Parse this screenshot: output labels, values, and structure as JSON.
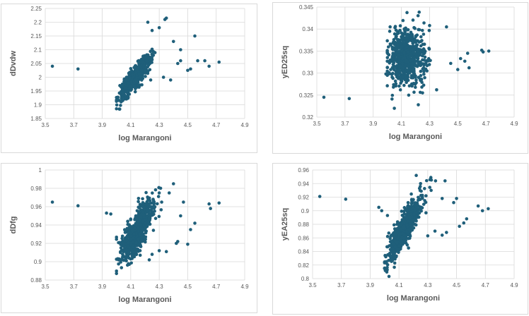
{
  "colors": {
    "marker": "#1f5f7a",
    "grid": "#d9d9d9",
    "text": "#595959",
    "border": "#d9d9d9"
  },
  "chart_data": [
    {
      "type": "scatter",
      "xlabel": "log Marangoni",
      "ylabel": "dDvdw",
      "xlim": [
        3.5,
        4.9
      ],
      "ylim": [
        1.85,
        2.25
      ],
      "xticks": [
        "3.5",
        "3.7",
        "3.9",
        "4.1",
        "4.3",
        "4.5",
        "4.7",
        "4.9"
      ],
      "yticks": [
        "1.85",
        "1.9",
        "1.95",
        "2",
        "2.05",
        "2.1",
        "2.15",
        "2.2",
        "2.25"
      ],
      "grid": true,
      "cluster": {
        "x_mean": 4.13,
        "x_sd": 0.055,
        "slope": 0.6,
        "intercept": -0.478,
        "noise": 0.018,
        "count": 650
      },
      "points": [
        [
          3.55,
          2.04
        ],
        [
          3.73,
          2.03
        ],
        [
          4.62,
          2.06
        ],
        [
          4.65,
          2.04
        ],
        [
          4.72,
          2.055
        ],
        [
          4.57,
          2.06
        ],
        [
          4.52,
          2.03
        ],
        [
          4.55,
          2.15
        ],
        [
          4.5,
          2.025
        ],
        [
          4.43,
          2.05
        ],
        [
          4.34,
          2.21
        ],
        [
          4.35,
          2.215
        ],
        [
          4.4,
          2.13
        ],
        [
          4.45,
          2.1
        ],
        [
          4.3,
          2.18
        ],
        [
          4.25,
          2.17
        ],
        [
          4.24,
          1.99
        ],
        [
          4.33,
          2.0
        ],
        [
          4.38,
          1.99
        ],
        [
          4.22,
          2.2
        ],
        [
          4.45,
          2.06
        ]
      ]
    },
    {
      "type": "scatter",
      "xlabel": "log Marangoni",
      "ylabel": "yED25sq",
      "xlim": [
        3.5,
        4.9
      ],
      "ylim": [
        0.32,
        0.345
      ],
      "xticks": [
        "3.5",
        "3.7",
        "3.9",
        "4.1",
        "4.3",
        "4.5",
        "4.7",
        "4.9"
      ],
      "yticks": [
        "0.32",
        "0.325",
        "0.33",
        "0.335",
        "0.34",
        "0.345"
      ],
      "grid": true,
      "cluster": {
        "x_mean": 4.14,
        "x_sd": 0.065,
        "slope": 0.0,
        "intercept": 0.3335,
        "noise": 0.0032,
        "count": 650
      },
      "points": [
        [
          3.55,
          0.3245
        ],
        [
          3.73,
          0.3242
        ],
        [
          4.67,
          0.3352
        ],
        [
          4.68,
          0.3348
        ],
        [
          4.72,
          0.335
        ],
        [
          4.57,
          0.3345
        ],
        [
          4.52,
          0.3333
        ],
        [
          4.55,
          0.3327
        ],
        [
          4.5,
          0.3308
        ],
        [
          4.58,
          0.3312
        ],
        [
          4.42,
          0.3405
        ],
        [
          4.3,
          0.3408
        ],
        [
          4.35,
          0.3262
        ],
        [
          4.25,
          0.3255
        ],
        [
          4.22,
          0.3228
        ],
        [
          4.02,
          0.3405
        ],
        [
          4.05,
          0.322
        ],
        [
          3.99,
          0.3298
        ],
        [
          4.0,
          0.3295
        ],
        [
          4.45,
          0.3322
        ]
      ]
    },
    {
      "type": "scatter",
      "xlabel": "log Marangoni",
      "ylabel": "dDfg",
      "xlim": [
        3.5,
        4.9
      ],
      "ylim": [
        0.88,
        1.0
      ],
      "xticks": [
        "3.5",
        "3.7",
        "3.9",
        "4.1",
        "4.3",
        "4.5",
        "4.7",
        "4.9"
      ],
      "yticks": [
        "0.88",
        "0.9",
        "0.92",
        "0.94",
        "0.96",
        "0.98",
        "1"
      ],
      "grid": true,
      "cluster": {
        "x_mean": 4.14,
        "x_sd": 0.06,
        "slope": 0.2,
        "intercept": 0.105,
        "noise": 0.011,
        "count": 650
      },
      "points": [
        [
          3.55,
          0.965
        ],
        [
          3.73,
          0.961
        ],
        [
          4.65,
          0.963
        ],
        [
          4.66,
          0.958
        ],
        [
          4.72,
          0.964
        ],
        [
          4.55,
          0.942
        ],
        [
          4.52,
          0.935
        ],
        [
          4.5,
          0.919
        ],
        [
          4.43,
          0.922
        ],
        [
          4.42,
          0.92
        ],
        [
          4.4,
          0.985
        ],
        [
          4.37,
          0.975
        ],
        [
          4.3,
          0.975
        ],
        [
          4.35,
          0.911
        ],
        [
          4.3,
          0.912
        ],
        [
          4.25,
          0.908
        ],
        [
          4.23,
          0.902
        ],
        [
          3.96,
          0.952
        ],
        [
          3.93,
          0.953
        ],
        [
          4.45,
          0.95
        ],
        [
          4.47,
          0.965
        ]
      ]
    },
    {
      "type": "scatter",
      "xlabel": "log Marangoni",
      "ylabel": "yEA25sq",
      "xlim": [
        3.5,
        4.9
      ],
      "ylim": [
        0.8,
        0.96
      ],
      "xticks": [
        "3.5",
        "3.7",
        "3.9",
        "4.1",
        "4.3",
        "4.5",
        "4.7",
        "4.9"
      ],
      "yticks": [
        "0.8",
        "0.82",
        "0.84",
        "0.86",
        "0.88",
        "0.9",
        "0.92",
        "0.94",
        "0.96"
      ],
      "grid": true,
      "cluster": {
        "x_mean": 4.14,
        "x_sd": 0.06,
        "slope": 0.35,
        "intercept": -0.575,
        "noise": 0.012,
        "count": 650
      },
      "points": [
        [
          3.55,
          0.921
        ],
        [
          3.73,
          0.917
        ],
        [
          4.65,
          0.907
        ],
        [
          4.68,
          0.9
        ],
        [
          4.72,
          0.903
        ],
        [
          4.57,
          0.888
        ],
        [
          4.55,
          0.882
        ],
        [
          4.52,
          0.877
        ],
        [
          4.5,
          0.918
        ],
        [
          4.42,
          0.944
        ],
        [
          4.4,
          0.918
        ],
        [
          4.4,
          0.864
        ],
        [
          4.35,
          0.87
        ],
        [
          4.3,
          0.863
        ],
        [
          4.22,
          0.952
        ],
        [
          4.25,
          0.94
        ],
        [
          3.96,
          0.905
        ],
        [
          3.98,
          0.9
        ],
        [
          4.02,
          0.893
        ],
        [
          4.43,
          0.868
        ],
        [
          4.48,
          0.912
        ]
      ]
    }
  ]
}
